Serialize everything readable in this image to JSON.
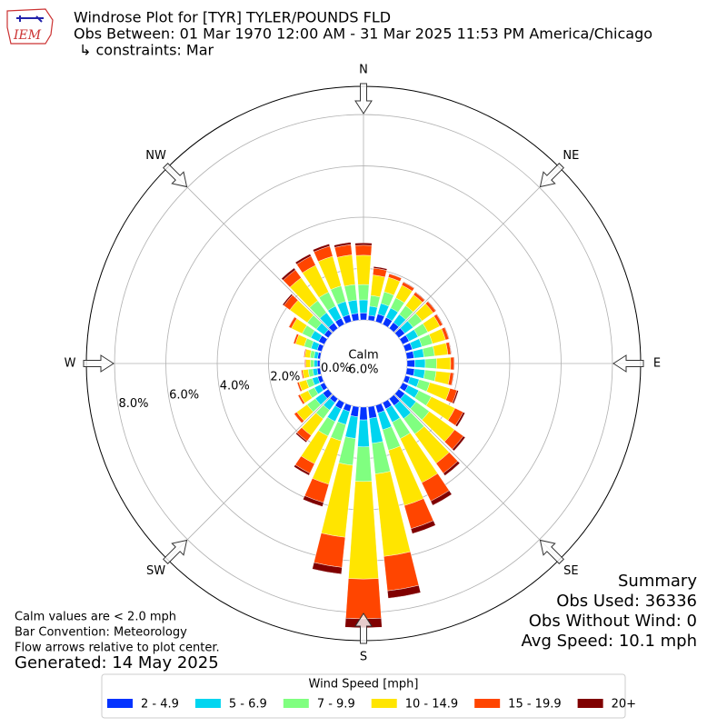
{
  "chart_data": {
    "type": "windrose",
    "title": [
      "Windrose Plot for [TYR] TYLER/POUNDS FLD",
      "Obs Between: 01 Mar 1970 12:00 AM - 31 Mar 2025 11:53 PM America/Chicago",
      "↳ constraints: Mar"
    ],
    "logo": "IEM",
    "directions": [
      0,
      10,
      20,
      30,
      40,
      50,
      60,
      70,
      80,
      90,
      100,
      110,
      120,
      130,
      140,
      150,
      160,
      170,
      180,
      190,
      200,
      210,
      220,
      230,
      240,
      250,
      260,
      270,
      280,
      290,
      300,
      310,
      320,
      330,
      340,
      350
    ],
    "compass": [
      {
        "value": 0,
        "label": "N"
      },
      {
        "value": 45,
        "label": "NE"
      },
      {
        "value": 90,
        "label": "E"
      },
      {
        "value": 135,
        "label": "SE"
      },
      {
        "value": 180,
        "label": "S"
      },
      {
        "value": 225,
        "label": "SW"
      },
      {
        "value": 270,
        "label": "W"
      },
      {
        "value": 315,
        "label": "NW"
      }
    ],
    "rlim": [
      0,
      9.1
    ],
    "rticks": [
      {
        "value": 0,
        "label": "0.0%"
      },
      {
        "value": 2,
        "label": "2.0%"
      },
      {
        "value": 4,
        "label": "4.0%"
      },
      {
        "value": 6,
        "label": "6.0%"
      },
      {
        "value": 8,
        "label": "8.0%"
      }
    ],
    "grid": true,
    "calm": {
      "label": "Calm",
      "value": 6.0,
      "value_label": "6.0%"
    },
    "legend_title": "Wind Speed [mph]",
    "legend_position": "bottom",
    "series": [
      {
        "name": "2 - 4.9",
        "color": "#0433ff",
        "values": [
          0.27,
          0.19,
          0.31,
          0.3,
          0.28,
          0.29,
          0.28,
          0.28,
          0.28,
          0.3,
          0.3,
          0.19,
          0.24,
          0.29,
          0.33,
          0.27,
          0.31,
          0.45,
          0.5,
          0.39,
          0.25,
          0.28,
          0.19,
          0.26,
          0.18,
          0.16,
          0.12,
          0.1,
          0.1,
          0.18,
          0.25,
          0.2,
          0.26,
          0.27,
          0.28,
          0.27
        ]
      },
      {
        "name": "5 - 6.9",
        "color": "#00d5f0",
        "values": [
          0.51,
          0.36,
          0.43,
          0.41,
          0.39,
          0.4,
          0.39,
          0.39,
          0.39,
          0.41,
          0.41,
          0.37,
          0.46,
          0.54,
          0.63,
          0.58,
          0.68,
          0.98,
          1.05,
          0.85,
          0.53,
          0.54,
          0.36,
          0.36,
          0.25,
          0.22,
          0.17,
          0.13,
          0.14,
          0.25,
          0.34,
          0.37,
          0.49,
          0.52,
          0.54,
          0.52
        ]
      },
      {
        "name": "7 - 9.9",
        "color": "#80ff80",
        "values": [
          0.6,
          0.42,
          0.47,
          0.44,
          0.42,
          0.43,
          0.42,
          0.43,
          0.42,
          0.44,
          0.44,
          0.43,
          0.54,
          0.64,
          0.74,
          0.71,
          0.83,
          1.2,
          1.35,
          1.05,
          0.66,
          0.63,
          0.42,
          0.4,
          0.28,
          0.24,
          0.18,
          0.14,
          0.16,
          0.28,
          0.37,
          0.44,
          0.58,
          0.61,
          0.63,
          0.61
        ]
      },
      {
        "name": "10 - 14.9",
        "color": "#ffe500",
        "values": [
          1.14,
          0.8,
          0.59,
          0.55,
          0.52,
          0.54,
          0.52,
          0.53,
          0.52,
          0.55,
          0.55,
          0.82,
          1.03,
          1.22,
          1.41,
          1.91,
          2.24,
          3.23,
          3.8,
          2.82,
          1.76,
          1.2,
          0.8,
          0.5,
          0.35,
          0.3,
          0.22,
          0.18,
          0.2,
          0.35,
          0.47,
          0.84,
          1.1,
          1.16,
          1.2,
          1.16
        ]
      },
      {
        "name": "15 - 19.9",
        "color": "#ff4500",
        "values": [
          0.39,
          0.27,
          0.14,
          0.13,
          0.12,
          0.12,
          0.12,
          0.13,
          0.12,
          0.13,
          0.13,
          0.28,
          0.35,
          0.42,
          0.48,
          0.8,
          0.94,
          1.35,
          1.55,
          1.18,
          0.74,
          0.41,
          0.27,
          0.12,
          0.08,
          0.07,
          0.05,
          0.04,
          0.04,
          0.08,
          0.11,
          0.29,
          0.38,
          0.4,
          0.41,
          0.4
        ]
      },
      {
        "name": "20+",
        "color": "#800000",
        "values": [
          0.09,
          0.06,
          0.01,
          0.02,
          0.02,
          0.02,
          0.02,
          0.02,
          0.02,
          0.02,
          0.02,
          0.06,
          0.08,
          0.09,
          0.11,
          0.18,
          0.2,
          0.29,
          0.35,
          0.26,
          0.16,
          0.09,
          0.06,
          0.01,
          0.01,
          0.01,
          0.01,
          0.01,
          0.01,
          0.01,
          0.01,
          0.06,
          0.09,
          0.09,
          0.09,
          0.09
        ]
      }
    ],
    "summary": {
      "title": "Summary",
      "lines": [
        "Obs Used: 36336",
        "Obs Without Wind: 0",
        "Avg Speed: 10.1 mph"
      ]
    },
    "notes": [
      "Calm values are < 2.0 mph",
      "Bar Convention: Meteorology",
      "Flow arrows relative to plot center."
    ],
    "generated": "Generated: 14 May 2025"
  }
}
